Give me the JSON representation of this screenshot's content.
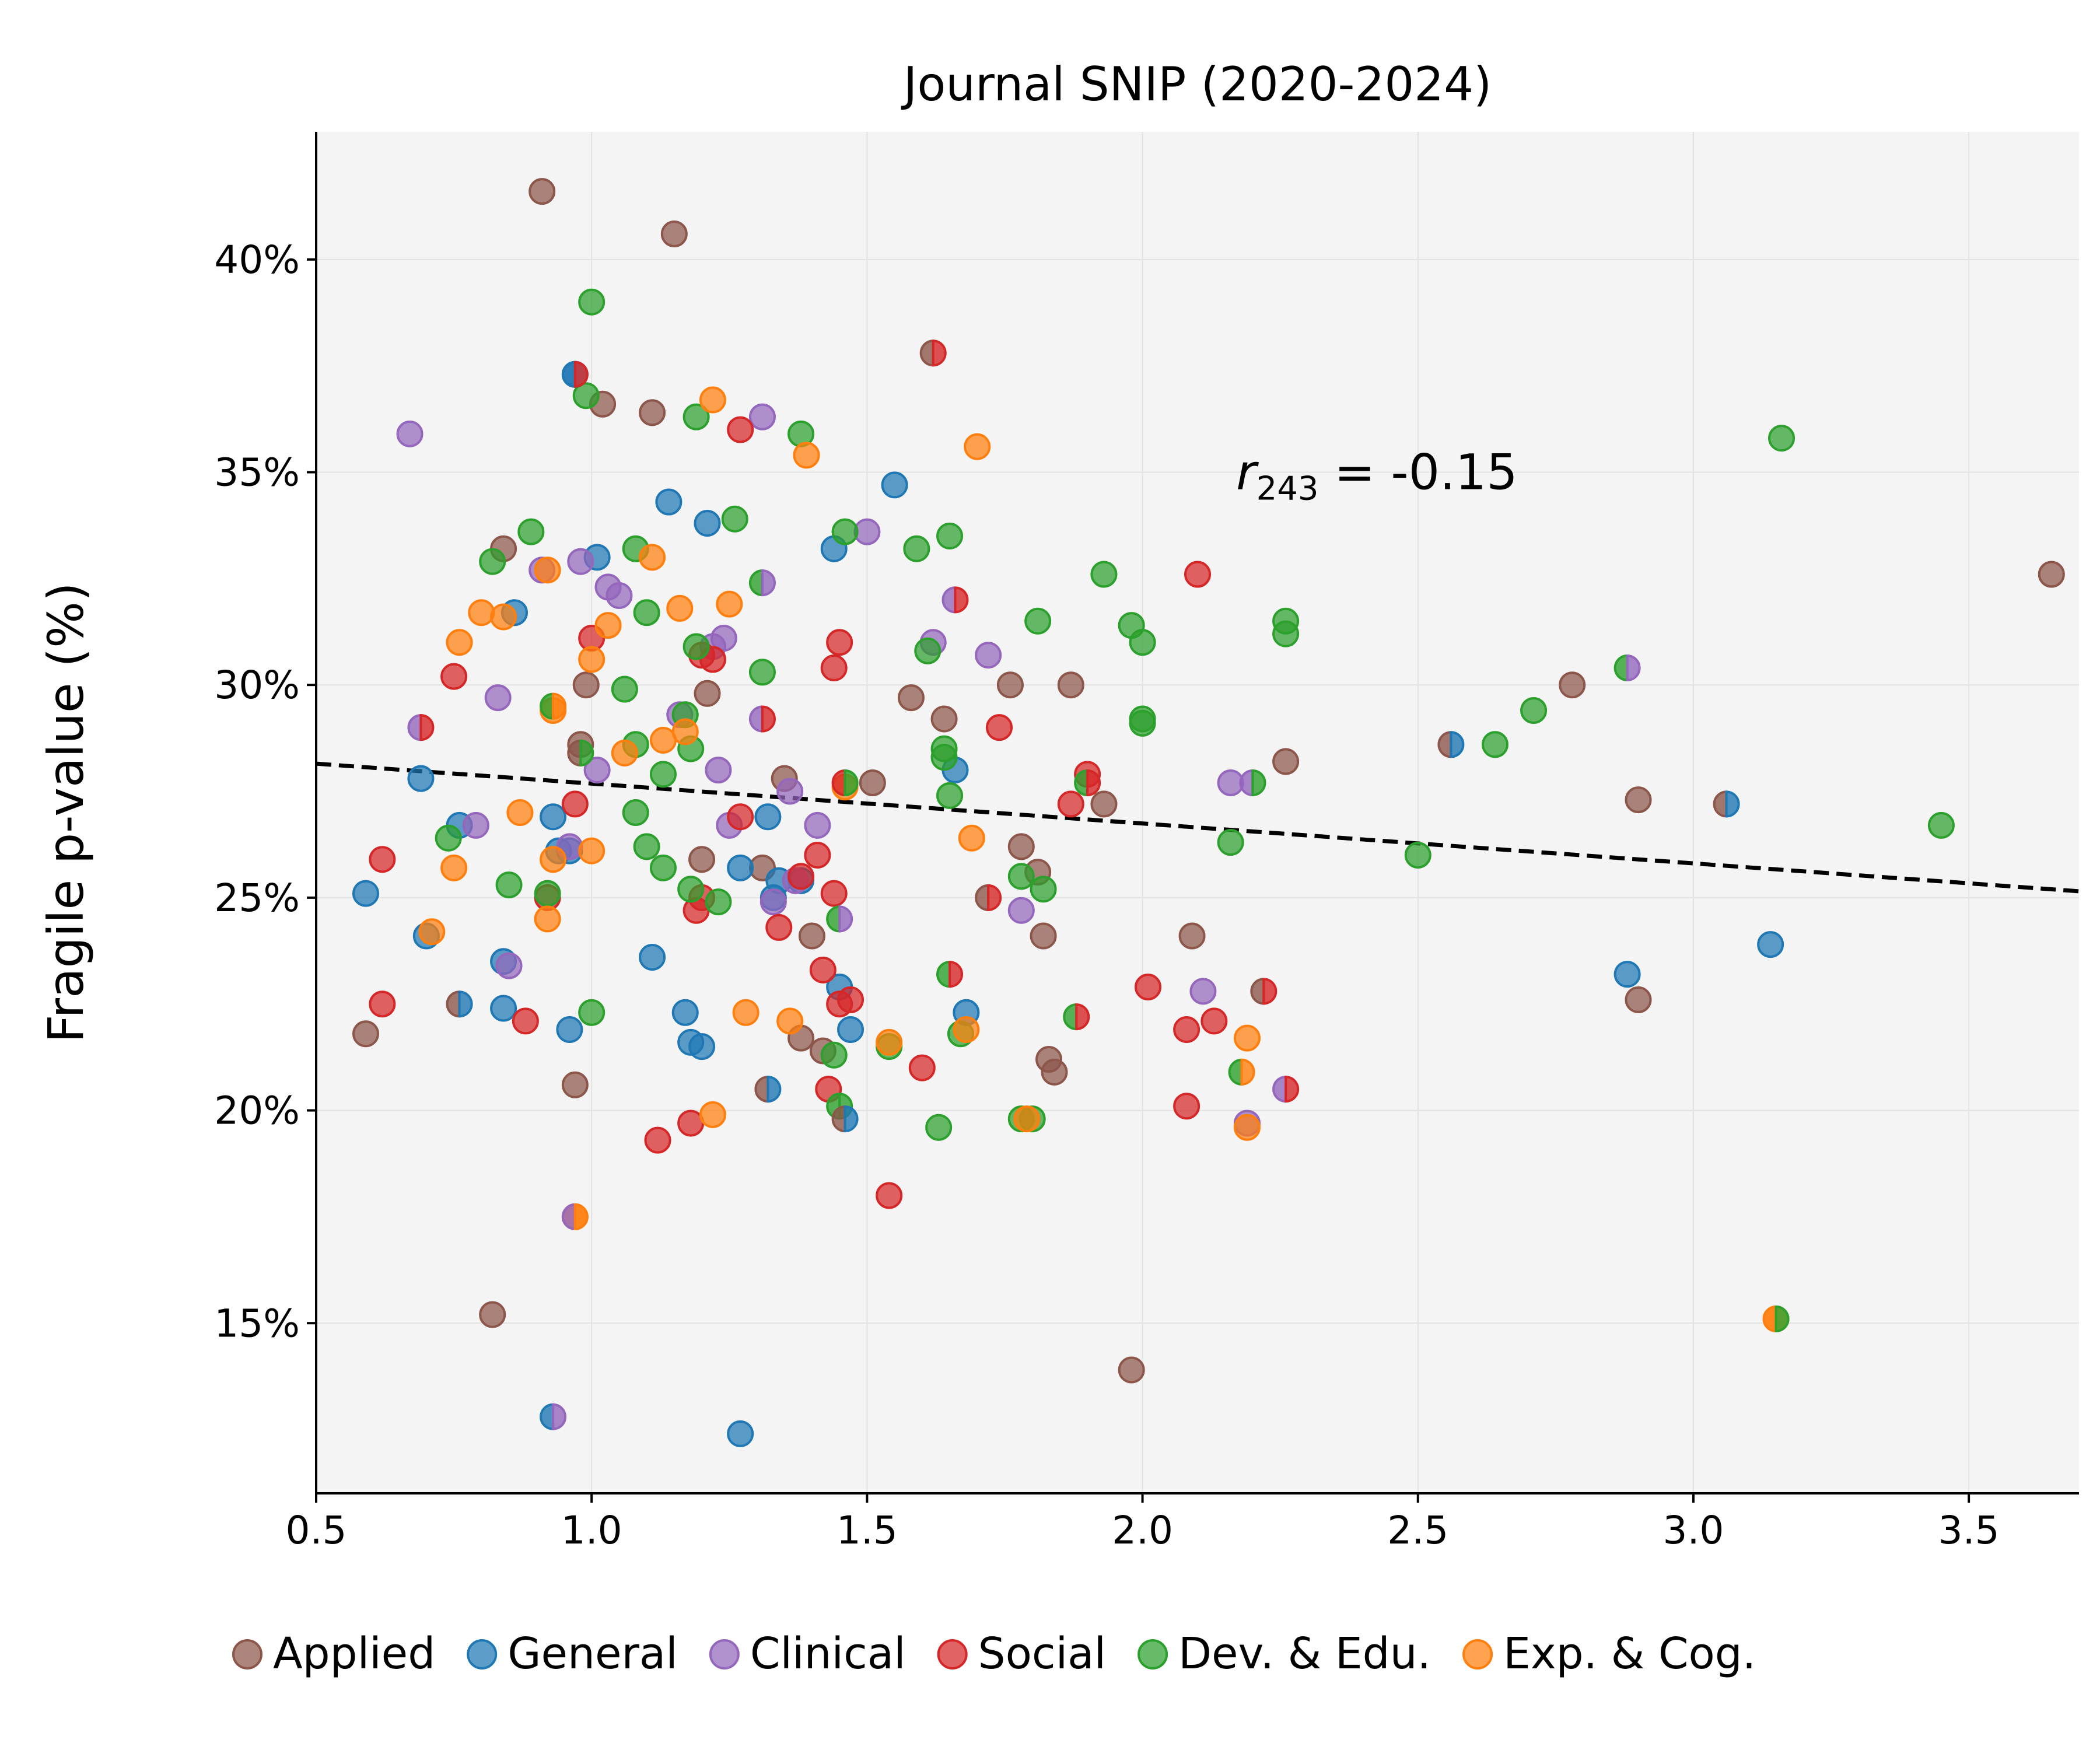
{
  "chart_data": {
    "type": "scatter",
    "title": "Journal SNIP (2020-2024)",
    "xlabel": "",
    "ylabel": "Fragile p-value (%)",
    "xlim": [
      0.5,
      3.7
    ],
    "ylim": [
      11,
      43
    ],
    "x_ticks": [
      0.5,
      1.0,
      1.5,
      2.0,
      2.5,
      3.0,
      3.5
    ],
    "x_tick_labels": [
      "0.5",
      "1.0",
      "1.5",
      "2.0",
      "2.5",
      "3.0",
      "3.5"
    ],
    "y_ticks": [
      15,
      20,
      25,
      30,
      35,
      40
    ],
    "y_tick_labels": [
      "15%",
      "20%",
      "25%",
      "30%",
      "35%",
      "40%"
    ],
    "grid": true,
    "legend_position": "bottom",
    "annotation": {
      "var": "r",
      "sub": "243",
      "text": " = -0.15",
      "x": 2.17,
      "y": 34.6
    },
    "trendline": {
      "style": "dashed",
      "x": [
        0.5,
        3.7
      ],
      "y": [
        28.15,
        25.15
      ]
    },
    "series": [
      {
        "name": "Applied",
        "color": "#8c564b",
        "points": [
          [
            0.91,
            41.6
          ],
          [
            1.15,
            40.6
          ],
          [
            1.02,
            36.6
          ],
          [
            1.11,
            36.4
          ],
          [
            0.84,
            33.2
          ],
          [
            1.21,
            29.8
          ],
          [
            0.99,
            30.0
          ],
          [
            0.98,
            28.6
          ],
          [
            1.2,
            25.9
          ],
          [
            1.35,
            27.8
          ],
          [
            1.31,
            25.7
          ],
          [
            1.4,
            24.1
          ],
          [
            1.38,
            21.7
          ],
          [
            1.42,
            21.4
          ],
          [
            1.51,
            27.7
          ],
          [
            1.58,
            29.7
          ],
          [
            1.64,
            29.2
          ],
          [
            1.76,
            30.0
          ],
          [
            1.78,
            26.2
          ],
          [
            1.81,
            25.6
          ],
          [
            1.82,
            24.1
          ],
          [
            1.83,
            21.2
          ],
          [
            1.84,
            20.9
          ],
          [
            1.87,
            30.0
          ],
          [
            1.93,
            27.2
          ],
          [
            0.59,
            21.8
          ],
          [
            0.82,
            15.2
          ],
          [
            0.97,
            20.6
          ],
          [
            1.98,
            13.9
          ],
          [
            2.09,
            24.1
          ],
          [
            2.26,
            28.2
          ],
          [
            2.78,
            30.0
          ],
          [
            2.9,
            27.3
          ],
          [
            2.9,
            22.6
          ],
          [
            3.65,
            32.6
          ]
        ]
      },
      {
        "name": "General",
        "color": "#1f77b4",
        "points": [
          [
            0.97,
            37.3
          ],
          [
            1.14,
            34.3
          ],
          [
            1.21,
            33.8
          ],
          [
            1.01,
            33.0
          ],
          [
            0.86,
            31.7
          ],
          [
            0.69,
            27.8
          ],
          [
            0.76,
            26.7
          ],
          [
            0.93,
            26.9
          ],
          [
            0.94,
            26.1
          ],
          [
            0.96,
            26.1
          ],
          [
            0.59,
            25.1
          ],
          [
            0.7,
            24.1
          ],
          [
            0.84,
            23.5
          ],
          [
            0.84,
            22.4
          ],
          [
            0.96,
            21.9
          ],
          [
            1.11,
            23.6
          ],
          [
            1.17,
            22.3
          ],
          [
            1.18,
            21.6
          ],
          [
            1.2,
            21.5
          ],
          [
            1.27,
            25.7
          ],
          [
            1.32,
            26.9
          ],
          [
            1.34,
            25.4
          ],
          [
            1.33,
            25.0
          ],
          [
            1.38,
            25.4
          ],
          [
            1.44,
            33.2
          ],
          [
            1.55,
            34.7
          ],
          [
            1.45,
            22.9
          ],
          [
            1.47,
            21.9
          ],
          [
            1.68,
            22.3
          ],
          [
            1.66,
            28.0
          ],
          [
            1.27,
            12.4
          ],
          [
            2.88,
            23.2
          ],
          [
            3.14,
            23.9
          ]
        ]
      },
      {
        "name": "Clinical",
        "color": "#9467bd",
        "points": [
          [
            0.67,
            35.9
          ],
          [
            0.98,
            32.9
          ],
          [
            1.03,
            32.3
          ],
          [
            1.05,
            32.1
          ],
          [
            1.31,
            36.3
          ],
          [
            1.5,
            33.6
          ],
          [
            0.83,
            29.7
          ],
          [
            0.91,
            32.7
          ],
          [
            1.01,
            28.0
          ],
          [
            1.16,
            29.3
          ],
          [
            1.23,
            28.0
          ],
          [
            1.25,
            26.7
          ],
          [
            1.36,
            27.5
          ],
          [
            1.41,
            26.7
          ],
          [
            1.37,
            25.4
          ],
          [
            1.33,
            24.9
          ],
          [
            1.62,
            31.0
          ],
          [
            1.72,
            30.7
          ],
          [
            1.78,
            24.7
          ],
          [
            1.24,
            31.1
          ],
          [
            1.22,
            30.9
          ],
          [
            0.79,
            26.7
          ],
          [
            0.85,
            23.4
          ],
          [
            0.96,
            26.2
          ],
          [
            2.16,
            27.7
          ],
          [
            2.11,
            22.8
          ],
          [
            2.19,
            19.7
          ]
        ]
      },
      {
        "name": "Social",
        "color": "#d62728",
        "points": [
          [
            1.27,
            36.0
          ],
          [
            1.0,
            31.1
          ],
          [
            1.2,
            30.7
          ],
          [
            1.22,
            30.6
          ],
          [
            1.44,
            30.4
          ],
          [
            1.45,
            31.0
          ],
          [
            0.75,
            30.2
          ],
          [
            0.97,
            27.2
          ],
          [
            0.62,
            25.9
          ],
          [
            0.62,
            22.5
          ],
          [
            0.88,
            22.1
          ],
          [
            0.92,
            25.0
          ],
          [
            1.12,
            19.3
          ],
          [
            1.18,
            19.7
          ],
          [
            1.19,
            24.7
          ],
          [
            1.2,
            25.0
          ],
          [
            1.34,
            24.3
          ],
          [
            1.38,
            25.5
          ],
          [
            1.42,
            23.3
          ],
          [
            1.43,
            20.5
          ],
          [
            1.44,
            25.1
          ],
          [
            1.45,
            22.5
          ],
          [
            1.47,
            22.6
          ],
          [
            1.54,
            18.0
          ],
          [
            1.6,
            21.0
          ],
          [
            1.74,
            29.0
          ],
          [
            1.87,
            27.2
          ],
          [
            1.9,
            27.9
          ],
          [
            2.01,
            22.9
          ],
          [
            2.08,
            20.1
          ],
          [
            2.08,
            21.9
          ],
          [
            2.13,
            22.1
          ],
          [
            2.1,
            32.6
          ],
          [
            1.41,
            26.0
          ],
          [
            1.27,
            26.9
          ]
        ]
      },
      {
        "name": "Dev. & Edu.",
        "color": "#2ca02c",
        "points": [
          [
            1.0,
            39.0
          ],
          [
            0.99,
            36.8
          ],
          [
            1.19,
            36.3
          ],
          [
            1.38,
            35.9
          ],
          [
            1.26,
            33.9
          ],
          [
            0.89,
            33.6
          ],
          [
            0.82,
            32.9
          ],
          [
            1.08,
            33.2
          ],
          [
            1.1,
            31.7
          ],
          [
            1.19,
            30.9
          ],
          [
            1.31,
            30.3
          ],
          [
            1.46,
            33.6
          ],
          [
            1.59,
            33.2
          ],
          [
            1.65,
            33.5
          ],
          [
            1.61,
            30.8
          ],
          [
            1.81,
            31.5
          ],
          [
            1.93,
            32.6
          ],
          [
            1.98,
            31.4
          ],
          [
            2.0,
            31.0
          ],
          [
            2.26,
            31.5
          ],
          [
            2.26,
            31.2
          ],
          [
            2.0,
            29.2
          ],
          [
            1.64,
            28.5
          ],
          [
            1.64,
            28.3
          ],
          [
            1.65,
            27.4
          ],
          [
            1.17,
            29.3
          ],
          [
            1.18,
            28.5
          ],
          [
            1.06,
            29.9
          ],
          [
            1.08,
            28.6
          ],
          [
            1.13,
            27.9
          ],
          [
            1.08,
            27.0
          ],
          [
            1.1,
            26.2
          ],
          [
            1.13,
            25.7
          ],
          [
            1.18,
            25.2
          ],
          [
            1.23,
            24.9
          ],
          [
            0.74,
            26.4
          ],
          [
            0.85,
            25.3
          ],
          [
            0.92,
            25.1
          ],
          [
            1.0,
            22.3
          ],
          [
            1.44,
            21.3
          ],
          [
            1.54,
            21.5
          ],
          [
            1.67,
            21.8
          ],
          [
            1.63,
            19.6
          ],
          [
            1.78,
            25.5
          ],
          [
            1.82,
            25.2
          ],
          [
            1.8,
            19.8
          ],
          [
            1.78,
            19.8
          ],
          [
            2.16,
            26.3
          ],
          [
            2.5,
            26.0
          ],
          [
            2.64,
            28.6
          ],
          [
            2.71,
            29.4
          ],
          [
            3.16,
            35.8
          ],
          [
            3.45,
            26.7
          ],
          [
            2.0,
            29.1
          ]
        ]
      },
      {
        "name": "Exp. & Cog.",
        "color": "#ff7f0e",
        "points": [
          [
            1.22,
            36.7
          ],
          [
            1.39,
            35.4
          ],
          [
            1.7,
            35.6
          ],
          [
            1.11,
            33.0
          ],
          [
            0.92,
            32.7
          ],
          [
            0.8,
            31.7
          ],
          [
            0.84,
            31.6
          ],
          [
            0.76,
            31.0
          ],
          [
            1.03,
            31.4
          ],
          [
            1.0,
            30.6
          ],
          [
            1.16,
            31.8
          ],
          [
            1.25,
            31.9
          ],
          [
            0.93,
            29.4
          ],
          [
            1.06,
            28.4
          ],
          [
            1.13,
            28.7
          ],
          [
            1.17,
            28.9
          ],
          [
            0.87,
            27.0
          ],
          [
            1.0,
            26.1
          ],
          [
            0.75,
            25.7
          ],
          [
            0.71,
            24.2
          ],
          [
            0.92,
            24.5
          ],
          [
            1.22,
            19.9
          ],
          [
            1.36,
            22.1
          ],
          [
            1.69,
            26.4
          ],
          [
            1.46,
            27.6
          ],
          [
            2.19,
            21.7
          ],
          [
            2.19,
            19.6
          ],
          [
            0.97,
            17.5
          ],
          [
            1.28,
            22.3
          ],
          [
            1.68,
            21.9
          ],
          [
            1.79,
            19.8
          ],
          [
            3.15,
            15.1
          ],
          [
            1.54,
            21.6
          ],
          [
            0.93,
            25.9
          ]
        ]
      }
    ],
    "split_markers": [
      {
        "x": 1.62,
        "y": 37.8,
        "colors": [
          "#8c564b",
          "#d62728"
        ]
      },
      {
        "x": 0.97,
        "y": 37.3,
        "colors": [
          "#1f77b4",
          "#d62728"
        ]
      },
      {
        "x": 1.31,
        "y": 32.4,
        "colors": [
          "#2ca02c",
          "#9467bd"
        ]
      },
      {
        "x": 1.66,
        "y": 32.0,
        "colors": [
          "#9467bd",
          "#d62728"
        ]
      },
      {
        "x": 1.31,
        "y": 29.2,
        "colors": [
          "#9467bd",
          "#d62728"
        ]
      },
      {
        "x": 0.69,
        "y": 29.0,
        "colors": [
          "#9467bd",
          "#d62728"
        ]
      },
      {
        "x": 0.93,
        "y": 29.5,
        "colors": [
          "#2ca02c",
          "#ff7f0e"
        ]
      },
      {
        "x": 1.46,
        "y": 27.7,
        "colors": [
          "#d62728",
          "#2ca02c"
        ]
      },
      {
        "x": 1.45,
        "y": 24.5,
        "colors": [
          "#2ca02c",
          "#9467bd"
        ]
      },
      {
        "x": 1.65,
        "y": 23.2,
        "colors": [
          "#2ca02c",
          "#d62728"
        ]
      },
      {
        "x": 1.45,
        "y": 20.1,
        "colors": [
          "#2ca02c",
          "#2ca02c"
        ]
      },
      {
        "x": 1.46,
        "y": 19.8,
        "colors": [
          "#8c564b",
          "#1f77b4"
        ]
      },
      {
        "x": 0.76,
        "y": 22.5,
        "colors": [
          "#8c564b",
          "#1f77b4"
        ]
      },
      {
        "x": 1.32,
        "y": 20.5,
        "colors": [
          "#8c564b",
          "#1f77b4"
        ]
      },
      {
        "x": 0.93,
        "y": 12.8,
        "colors": [
          "#1f77b4",
          "#9467bd"
        ]
      },
      {
        "x": 1.9,
        "y": 27.7,
        "colors": [
          "#2ca02c",
          "#d62728"
        ]
      },
      {
        "x": 1.88,
        "y": 22.2,
        "colors": [
          "#2ca02c",
          "#d62728"
        ]
      },
      {
        "x": 1.72,
        "y": 25.0,
        "colors": [
          "#8c564b",
          "#d62728"
        ]
      },
      {
        "x": 2.22,
        "y": 22.8,
        "colors": [
          "#8c564b",
          "#d62728"
        ]
      },
      {
        "x": 2.26,
        "y": 20.5,
        "colors": [
          "#9467bd",
          "#d62728"
        ]
      },
      {
        "x": 2.2,
        "y": 27.7,
        "colors": [
          "#9467bd",
          "#2ca02c"
        ]
      },
      {
        "x": 2.18,
        "y": 20.9,
        "colors": [
          "#2ca02c",
          "#ff7f0e"
        ]
      },
      {
        "x": 2.56,
        "y": 28.6,
        "colors": [
          "#8c564b",
          "#1f77b4"
        ]
      },
      {
        "x": 2.88,
        "y": 30.4,
        "colors": [
          "#2ca02c",
          "#9467bd"
        ]
      },
      {
        "x": 3.06,
        "y": 27.2,
        "colors": [
          "#8c564b",
          "#1f77b4"
        ]
      },
      {
        "x": 3.15,
        "y": 15.1,
        "colors": [
          "#ff7f0e",
          "#2ca02c"
        ]
      },
      {
        "x": 0.97,
        "y": 17.5,
        "colors": [
          "#9467bd",
          "#ff7f0e"
        ]
      },
      {
        "x": 0.98,
        "y": 28.4,
        "colors": [
          "#8c564b",
          "#2ca02c"
        ]
      }
    ]
  }
}
